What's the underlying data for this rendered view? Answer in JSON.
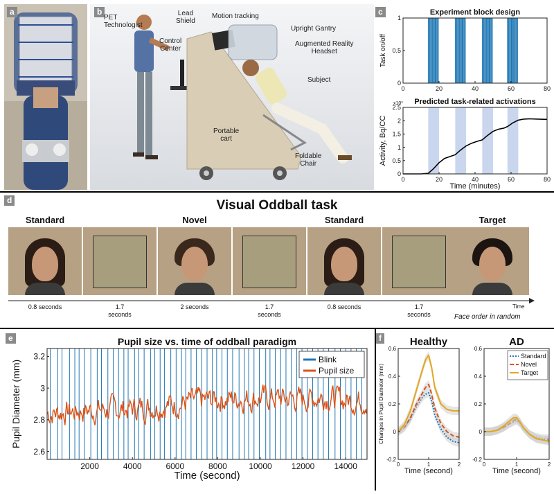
{
  "panel_letters": {
    "a": "a",
    "b": "b",
    "c": "c",
    "d": "d",
    "e": "e",
    "f": "f"
  },
  "panel_b": {
    "labels": {
      "pet_technologist": "PET\nTechnologist",
      "lead_shield": "Lead\nShield",
      "motion_tracking": "Motion tracking",
      "upright_gantry": "Upright Gantry",
      "control_center": "Control\nCenter",
      "ar_headset": "Augmented Reality\nHeadset",
      "subject": "Subject",
      "portable_cart": "Portable\ncart",
      "foldable_chair": "Foldable\nChair"
    }
  },
  "panel_d": {
    "title": "Visual Oddball task",
    "frames": [
      {
        "caption": "Standard",
        "duration": "0.8 seconds",
        "kind": "face-female"
      },
      {
        "caption": "",
        "duration": "1.7\nseconds",
        "kind": "blank"
      },
      {
        "caption": "Novel",
        "duration": "2 seconds",
        "kind": "face-male"
      },
      {
        "caption": "",
        "duration": "1.7\nseconds",
        "kind": "blank"
      },
      {
        "caption": "Standard",
        "duration": "0.8 seconds",
        "kind": "face-female"
      },
      {
        "caption": "",
        "duration": "1.7\nseconds",
        "kind": "blank"
      },
      {
        "caption": "Target",
        "duration": "",
        "kind": "face-male2"
      }
    ],
    "time_label": "Time",
    "note": "Face order in random"
  },
  "chart_data": [
    {
      "id": "c-top",
      "type": "bar",
      "title": "Experiment block design",
      "ylabel": "Task on/off",
      "xlabel": "",
      "xlim": [
        0,
        80
      ],
      "ylim": [
        0,
        1
      ],
      "xticks": [
        0,
        20,
        40,
        60,
        80
      ],
      "yticks": [
        0,
        0.5,
        1
      ],
      "ytick_labels": [
        "0",
        "0.5",
        "1"
      ],
      "blocks": [
        [
          14,
          20
        ],
        [
          29,
          35
        ],
        [
          44,
          50
        ],
        [
          58,
          64
        ]
      ],
      "pulses_per_block": 7,
      "color": "#1f77b4"
    },
    {
      "id": "c-bottom",
      "type": "line",
      "title": "Predicted task-related activations",
      "ylabel": "Activity, Bq/CC",
      "xlabel": "Time (minutes)",
      "y_multiplier": "x10³",
      "xlim": [
        0,
        80
      ],
      "ylim": [
        0,
        2.5
      ],
      "xticks": [
        0,
        20,
        40,
        60,
        80
      ],
      "yticks": [
        0,
        0.5,
        1,
        1.5,
        2,
        2.5
      ],
      "ytick_labels": [
        "0",
        "0.5",
        "1",
        "1.5",
        "2",
        "2.5"
      ],
      "shaded_blocks": [
        [
          14,
          20
        ],
        [
          29,
          35
        ],
        [
          44,
          50
        ],
        [
          58,
          64
        ]
      ],
      "x": [
        0,
        10,
        14,
        17,
        20,
        23,
        26,
        29,
        32,
        35,
        38,
        41,
        44,
        47,
        50,
        53,
        56,
        58,
        61,
        64,
        67,
        70,
        75,
        80
      ],
      "y": [
        0,
        0,
        0.02,
        0.2,
        0.42,
        0.58,
        0.65,
        0.72,
        0.9,
        1.05,
        1.15,
        1.22,
        1.28,
        1.45,
        1.6,
        1.68,
        1.72,
        1.78,
        1.92,
        2.02,
        2.06,
        2.07,
        2.06,
        2.05
      ],
      "color": "#000000",
      "shade_color": "#c9d6ee"
    },
    {
      "id": "e",
      "type": "line",
      "title": "Pupil size vs. time of oddball paradigm",
      "xlabel": "Time (second)",
      "ylabel": "Pupil Diameter (mm)",
      "xlim": [
        0,
        15000
      ],
      "ylim": [
        2.55,
        3.25
      ],
      "xticks": [
        2000,
        4000,
        6000,
        8000,
        10000,
        12000,
        14000
      ],
      "yticks": [
        2.6,
        2.8,
        3.0,
        3.2
      ],
      "ytick_labels": [
        "2.6",
        "2.8",
        "3",
        "3.2"
      ],
      "legend": [
        {
          "name": "Blink",
          "color": "#1f77b4"
        },
        {
          "name": "Pupil size",
          "color": "#d95319"
        }
      ],
      "legend_position": "top-right",
      "blink_times": [
        150,
        500,
        700,
        1050,
        1300,
        1500,
        1750,
        2050,
        2350,
        2550,
        2850,
        3100,
        3350,
        3600,
        3800,
        4100,
        4300,
        4550,
        4850,
        5050,
        5300,
        5500,
        5800,
        6050,
        6300,
        6500,
        6750,
        7000,
        7250,
        7500,
        7750,
        7950,
        8200,
        8450,
        8700,
        9000,
        9250,
        9450,
        9700,
        9950,
        10250,
        10450,
        10700,
        10950,
        11200,
        11450,
        11700,
        11950,
        12200,
        12450,
        12700,
        12950,
        13200,
        13500,
        13750,
        14000,
        14250,
        14500,
        14750
      ],
      "series": [
        {
          "name": "Pupil size",
          "x_start": 0,
          "x_step": 40,
          "mean_profile_x": [
            0,
            2000,
            4000,
            6000,
            8000,
            10000,
            12000,
            13000,
            14000,
            15000
          ],
          "mean_profile_y": [
            2.84,
            2.86,
            2.87,
            2.9,
            2.93,
            2.94,
            2.93,
            2.95,
            2.92,
            2.93
          ],
          "amplitude": 0.07,
          "min_value": 2.64,
          "max_value": 3.13
        }
      ]
    },
    {
      "id": "f-healthy",
      "type": "line",
      "title": "Healthy",
      "xlabel": "Time (second)",
      "ylabel": "Changes in Pupil Diameter (mm)",
      "xlim": [
        0,
        2
      ],
      "ylim": [
        -0.2,
        0.6
      ],
      "xticks": [
        0,
        1,
        2
      ],
      "yticks": [
        -0.2,
        0,
        0.2,
        0.4,
        0.6
      ],
      "ytick_labels": [
        "-0.2",
        "0",
        "0.2",
        "0.4",
        "0.6"
      ],
      "x": [
        0,
        0.2,
        0.4,
        0.6,
        0.8,
        0.9,
        1.0,
        1.1,
        1.2,
        1.4,
        1.6,
        1.8,
        2.0
      ],
      "series": [
        {
          "name": "Standard",
          "style": "dotted",
          "color": "#1f77b4",
          "values": [
            0.0,
            0.03,
            0.09,
            0.18,
            0.25,
            0.27,
            0.28,
            0.22,
            0.12,
            0.02,
            -0.04,
            -0.07,
            -0.08
          ]
        },
        {
          "name": "Novel",
          "style": "dashed",
          "color": "#d95319",
          "values": [
            0.0,
            0.03,
            0.1,
            0.2,
            0.28,
            0.32,
            0.34,
            0.27,
            0.17,
            0.06,
            0.0,
            -0.03,
            -0.04
          ]
        },
        {
          "name": "Target",
          "style": "solid",
          "color": "#e3a81c",
          "values": [
            0.0,
            0.05,
            0.15,
            0.3,
            0.45,
            0.52,
            0.55,
            0.46,
            0.32,
            0.2,
            0.16,
            0.15,
            0.15
          ]
        }
      ]
    },
    {
      "id": "f-ad",
      "type": "line",
      "title": "AD",
      "xlabel": "Time (second)",
      "ylabel": "",
      "xlim": [
        0,
        2
      ],
      "ylim": [
        -0.2,
        0.6
      ],
      "xticks": [
        0,
        1,
        2
      ],
      "yticks": [
        -0.2,
        0,
        0.2,
        0.4,
        0.6
      ],
      "ytick_labels": [
        "-0.2",
        "0",
        "0.2",
        "0.4",
        "0.6"
      ],
      "legend_position": "top-right",
      "x": [
        0,
        0.2,
        0.4,
        0.6,
        0.8,
        0.9,
        1.0,
        1.1,
        1.2,
        1.4,
        1.6,
        1.8,
        2.0
      ],
      "series": [
        {
          "name": "Standard",
          "style": "dotted",
          "color": "#1f77b4",
          "values": [
            0.0,
            0.0,
            0.01,
            0.03,
            0.06,
            0.07,
            0.08,
            0.06,
            0.03,
            -0.02,
            -0.04,
            -0.05,
            -0.05
          ]
        },
        {
          "name": "Novel",
          "style": "dashed",
          "color": "#d95319",
          "values": [
            0.0,
            0.0,
            0.01,
            0.03,
            0.06,
            0.08,
            0.09,
            0.07,
            0.03,
            -0.02,
            -0.05,
            -0.06,
            -0.06
          ]
        },
        {
          "name": "Target",
          "style": "solid",
          "color": "#e3a81c",
          "values": [
            0.0,
            0.0,
            0.01,
            0.04,
            0.08,
            0.1,
            0.1,
            0.07,
            0.03,
            -0.02,
            -0.05,
            -0.06,
            -0.07
          ]
        }
      ]
    }
  ]
}
